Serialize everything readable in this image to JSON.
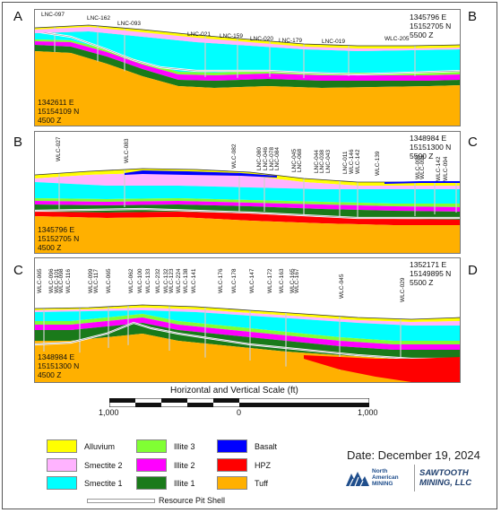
{
  "sections": [
    {
      "start_letter": "A",
      "end_letter": "B",
      "start_coord": "1342611 E\n15154109 N\n4500 Z",
      "end_coord": "1345796 E\n15152705 N\n5500 Z",
      "wells": [
        "LNC-097",
        "LNC-162",
        "LNC-093",
        "LNC-021",
        "LNC-159",
        "LNC-020",
        "LNC-179",
        "LNC-019",
        "WLC-205"
      ]
    },
    {
      "start_letter": "B",
      "end_letter": "C",
      "start_coord": "1345796 E\n15152705 N\n4500 Z",
      "end_coord": "1348984 E\n15151300 N\n5500 Z",
      "wells": [
        "WLC-027",
        "WLC-083",
        "WLC-082",
        "LNC-080",
        "LNC-046",
        "LNC-078",
        "LNC-084",
        "LNC-045",
        "LNC-068",
        "LNC-044",
        "LNC-038",
        "LNC-043",
        "LNC-011",
        "WLC-146",
        "WLC-142",
        "WLC-139",
        "WLC-093",
        "WLC-091",
        "WLC-142",
        "WLC-094"
      ]
    },
    {
      "start_letter": "C",
      "end_letter": "D",
      "start_coord": "1348984 E\n15151300 N\n4500 Z",
      "end_coord": "1352171 E\n15149895 N\n5500 Z",
      "wells": [
        "WLC-065",
        "WLC-096",
        "WLC-101",
        "WLC-098",
        "WLC-116",
        "WLC-099",
        "WLC-117",
        "WLC-065",
        "WLC-062",
        "WLC-100",
        "WLC-133",
        "WLC-232",
        "WLC-132",
        "WLC-123",
        "WLC-224",
        "WLC-138",
        "WLC-141",
        "WLC-176",
        "WLC-178",
        "WLC-147",
        "WLC-172",
        "WLC-163",
        "WLC-165",
        "WLC-167",
        "WLC-045",
        "WLC-029"
      ]
    }
  ],
  "scale": {
    "title": "Horizontal and Vertical Scale (ft)",
    "ticks": [
      "1,000",
      "0",
      "1,000"
    ]
  },
  "legend": [
    {
      "label": "Alluvium",
      "color": "#ffff00"
    },
    {
      "label": "Smectite 2",
      "color": "#ffb3ff"
    },
    {
      "label": "Smectite 1",
      "color": "#00ffff"
    },
    {
      "label": "Illite 3",
      "color": "#80ff33"
    },
    {
      "label": "Illite 2",
      "color": "#ff00ff"
    },
    {
      "label": "Illite 1",
      "color": "#1a7a1a"
    },
    {
      "label": "Basalt",
      "color": "#0000ff"
    },
    {
      "label": "HPZ",
      "color": "#ff0000"
    },
    {
      "label": "Tuff",
      "color": "#ffb000"
    }
  ],
  "pit_label": "Resource Pit Shell",
  "date": "Date: December 19, 2024",
  "logos": {
    "north_american": "North\nAmerican\nMINING",
    "sawtooth": "SAWTOOTH\nMINING, LLC"
  },
  "colors": {
    "alluvium": "#ffff00",
    "smectite2": "#ffb3ff",
    "smectite1": "#00ffff",
    "illite3": "#80ff33",
    "illite2": "#ff00ff",
    "illite1": "#1a7a1a",
    "basalt": "#0000ff",
    "hpz": "#ff0000",
    "tuff": "#ffb000"
  }
}
